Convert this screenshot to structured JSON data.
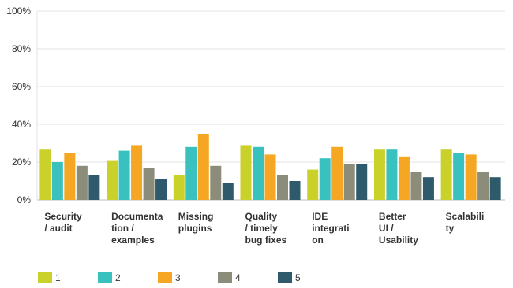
{
  "chart_data": {
    "type": "bar",
    "title": "",
    "xlabel": "",
    "ylabel": "",
    "ylim": [
      0,
      100
    ],
    "yticks": [
      "0%",
      "20%",
      "40%",
      "60%",
      "80%",
      "100%"
    ],
    "grid": true,
    "legend_position": "bottom-left",
    "categories": [
      [
        "Security",
        "/ audit"
      ],
      [
        "Documenta",
        "tion /",
        "examples"
      ],
      [
        "Missing",
        "plugins"
      ],
      [
        "Quality",
        "/ timely",
        "bug fixes"
      ],
      [
        "IDE",
        "integrati",
        "on"
      ],
      [
        "Better",
        "UI /",
        "Usability"
      ],
      [
        "Scalabili",
        "ty"
      ]
    ],
    "series": [
      {
        "name": "1",
        "color": "#c9d12a",
        "values": [
          27,
          21,
          13,
          29,
          16,
          27,
          27
        ]
      },
      {
        "name": "2",
        "color": "#38c1be",
        "values": [
          20,
          26,
          28,
          28,
          22,
          27,
          25
        ]
      },
      {
        "name": "3",
        "color": "#f5a623",
        "values": [
          25,
          29,
          35,
          24,
          28,
          23,
          24
        ]
      },
      {
        "name": "4",
        "color": "#8c8c7a",
        "values": [
          18,
          17,
          18,
          13,
          19,
          15,
          15
        ]
      },
      {
        "name": "5",
        "color": "#2e5a6b",
        "values": [
          13,
          11,
          9,
          10,
          19,
          12,
          12
        ]
      }
    ]
  }
}
